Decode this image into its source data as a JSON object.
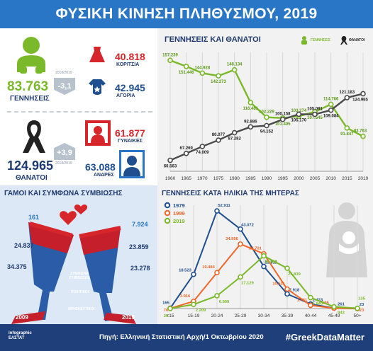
{
  "header": {
    "title": "ΦΥΣΙΚΗ ΚΙΝΗΣΗ ΠΛΗΘΥΣΜΟΥ, 2019"
  },
  "births": {
    "total": "83.763",
    "label": "ΓΕΝΝΗΣΕΙΣ",
    "change": "-3,1",
    "change_note": "2018/2019",
    "girls": "40.818",
    "girls_label": "ΚΟΡΙΤΣΙΑ",
    "boys": "42.945",
    "boys_label": "ΑΓΟΡΙΑ"
  },
  "deaths": {
    "total": "124.965",
    "label": "ΘΑΝΑΤΟΙ",
    "change": "+3,9",
    "change_note": "2018/2019",
    "women": "61.877",
    "women_label": "ΓΥΝΑΙΚΕΣ",
    "men": "63.088",
    "men_label": "ΑΝΔΡΕΣ"
  },
  "colors": {
    "blue": "#2a76c6",
    "green": "#7ab929",
    "red": "#d7262b",
    "navy": "#1f3a70",
    "grey": "#4a4a4a",
    "orange": "#f0672a"
  },
  "chart_data": [
    {
      "type": "line",
      "title": "ΓΕΝΝΗΣΕΙΣ ΚΑΙ ΘΑΝΑΤΟΙ",
      "legend": [
        "ΓΕΝΝΗΣΕΙΣ",
        "ΘΑΝΑΤΟΙ"
      ],
      "x": [
        1960,
        1965,
        1970,
        1975,
        1980,
        1985,
        1990,
        1995,
        2000,
        2005,
        2010,
        2015,
        2019
      ],
      "series": [
        {
          "name": "ΓΕΝΝΗΣΕΙΣ",
          "color": "#7ab929",
          "values": [
            157239,
            151446,
            144928,
            142273,
            148134,
            116481,
            102229,
            101495,
            103274,
            107545,
            114766,
            91847,
            83763
          ],
          "labels": [
            "157.239",
            "151.446",
            "144.928",
            "142.273",
            "148.134",
            "116.481",
            "102.229",
            "101.495",
            "103.274",
            "107.545",
            "114.766",
            "91.847",
            "83.763"
          ]
        },
        {
          "name": "ΘΑΝΑΤΟΙ",
          "color": "#4a4a4a",
          "values": [
            60563,
            67269,
            74009,
            80077,
            87282,
            92886,
            94152,
            100158,
            105170,
            105091,
            109084,
            121183,
            124965
          ],
          "labels": [
            "60.563",
            "67.269",
            "74.009",
            "80.077",
            "87.282",
            "92.886",
            "94.152",
            "100.158",
            "105.170",
            "105.091",
            "109.084",
            "121.183",
            "124.965"
          ]
        }
      ],
      "grid": true
    },
    {
      "type": "line",
      "title": "ΓΕΝΝΗΣΕΙΣ ΚΑΤΑ ΗΛΙΚΙΑ ΤΗΣ ΜΗΤΕΡΑΣ",
      "categories": [
        "<15",
        "15-19",
        "20-24",
        "25-29",
        "30-34",
        "35-39",
        "40-44",
        "45-49",
        "50+"
      ],
      "series": [
        {
          "name": "1979",
          "color": "#1f4f8f",
          "values": [
            165,
            18523,
            52911,
            43072,
            22811,
            7918,
            2423,
            261,
            23
          ],
          "labels": [
            "165",
            "18.523",
            "52.911",
            "43.072",
            "22.811",
            "7.918",
            "2.423",
            "261",
            "23"
          ]
        },
        {
          "name": "1999",
          "color": "#f0672a",
          "values": [
            76,
            3916,
            19484,
            34956,
            29701,
            10511,
            1761,
            195,
            23
          ],
          "labels": [
            "76",
            "3.916",
            "19.484",
            "34.956",
            "29.701",
            "10.511",
            "1.761",
            "195",
            "23"
          ]
        },
        {
          "name": "2019",
          "color": "#7ab929",
          "values": [
            25,
            2209,
            6909,
            17129,
            28562,
            21839,
            5940,
            943,
            135
          ],
          "labels": [
            "25",
            "2.209",
            "6.909",
            "17.129",
            "28.562",
            "21.839",
            "5.940",
            "943",
            "135"
          ]
        }
      ],
      "grid": true
    }
  ],
  "marriages": {
    "title": "ΓΑΜΟΙ ΚΑΙ ΣΥΜΦΩΝΑ ΣΥΜΒΙΩΣΗΣ",
    "y2009_civil_partnership": "161",
    "y2009_civil": "24.837",
    "y2009_religious": "34.375",
    "y2019_civil_partnership": "7.924",
    "y2019_civil": "23.859",
    "y2019_religious": "23.278",
    "key_partnership": "ΣΥΜΦΩΝΑ ΣΥΜΒΙΩΣΗΣ",
    "key_civil": "ΠΟΛΙΤΙΚΟΙ",
    "key_religious": "ΘΡΗΣΚΕΥΤΙΚΟΙ",
    "year_left": "2009",
    "year_right": "2019"
  },
  "footer": {
    "logo": "infographic ΕΛΣΤΑΤ",
    "source": "Πηγή: Ελληνική Στατιστική Αρχή/1 Οκτωβρίου 2020",
    "hashtag": "#GreekDataMatter"
  }
}
